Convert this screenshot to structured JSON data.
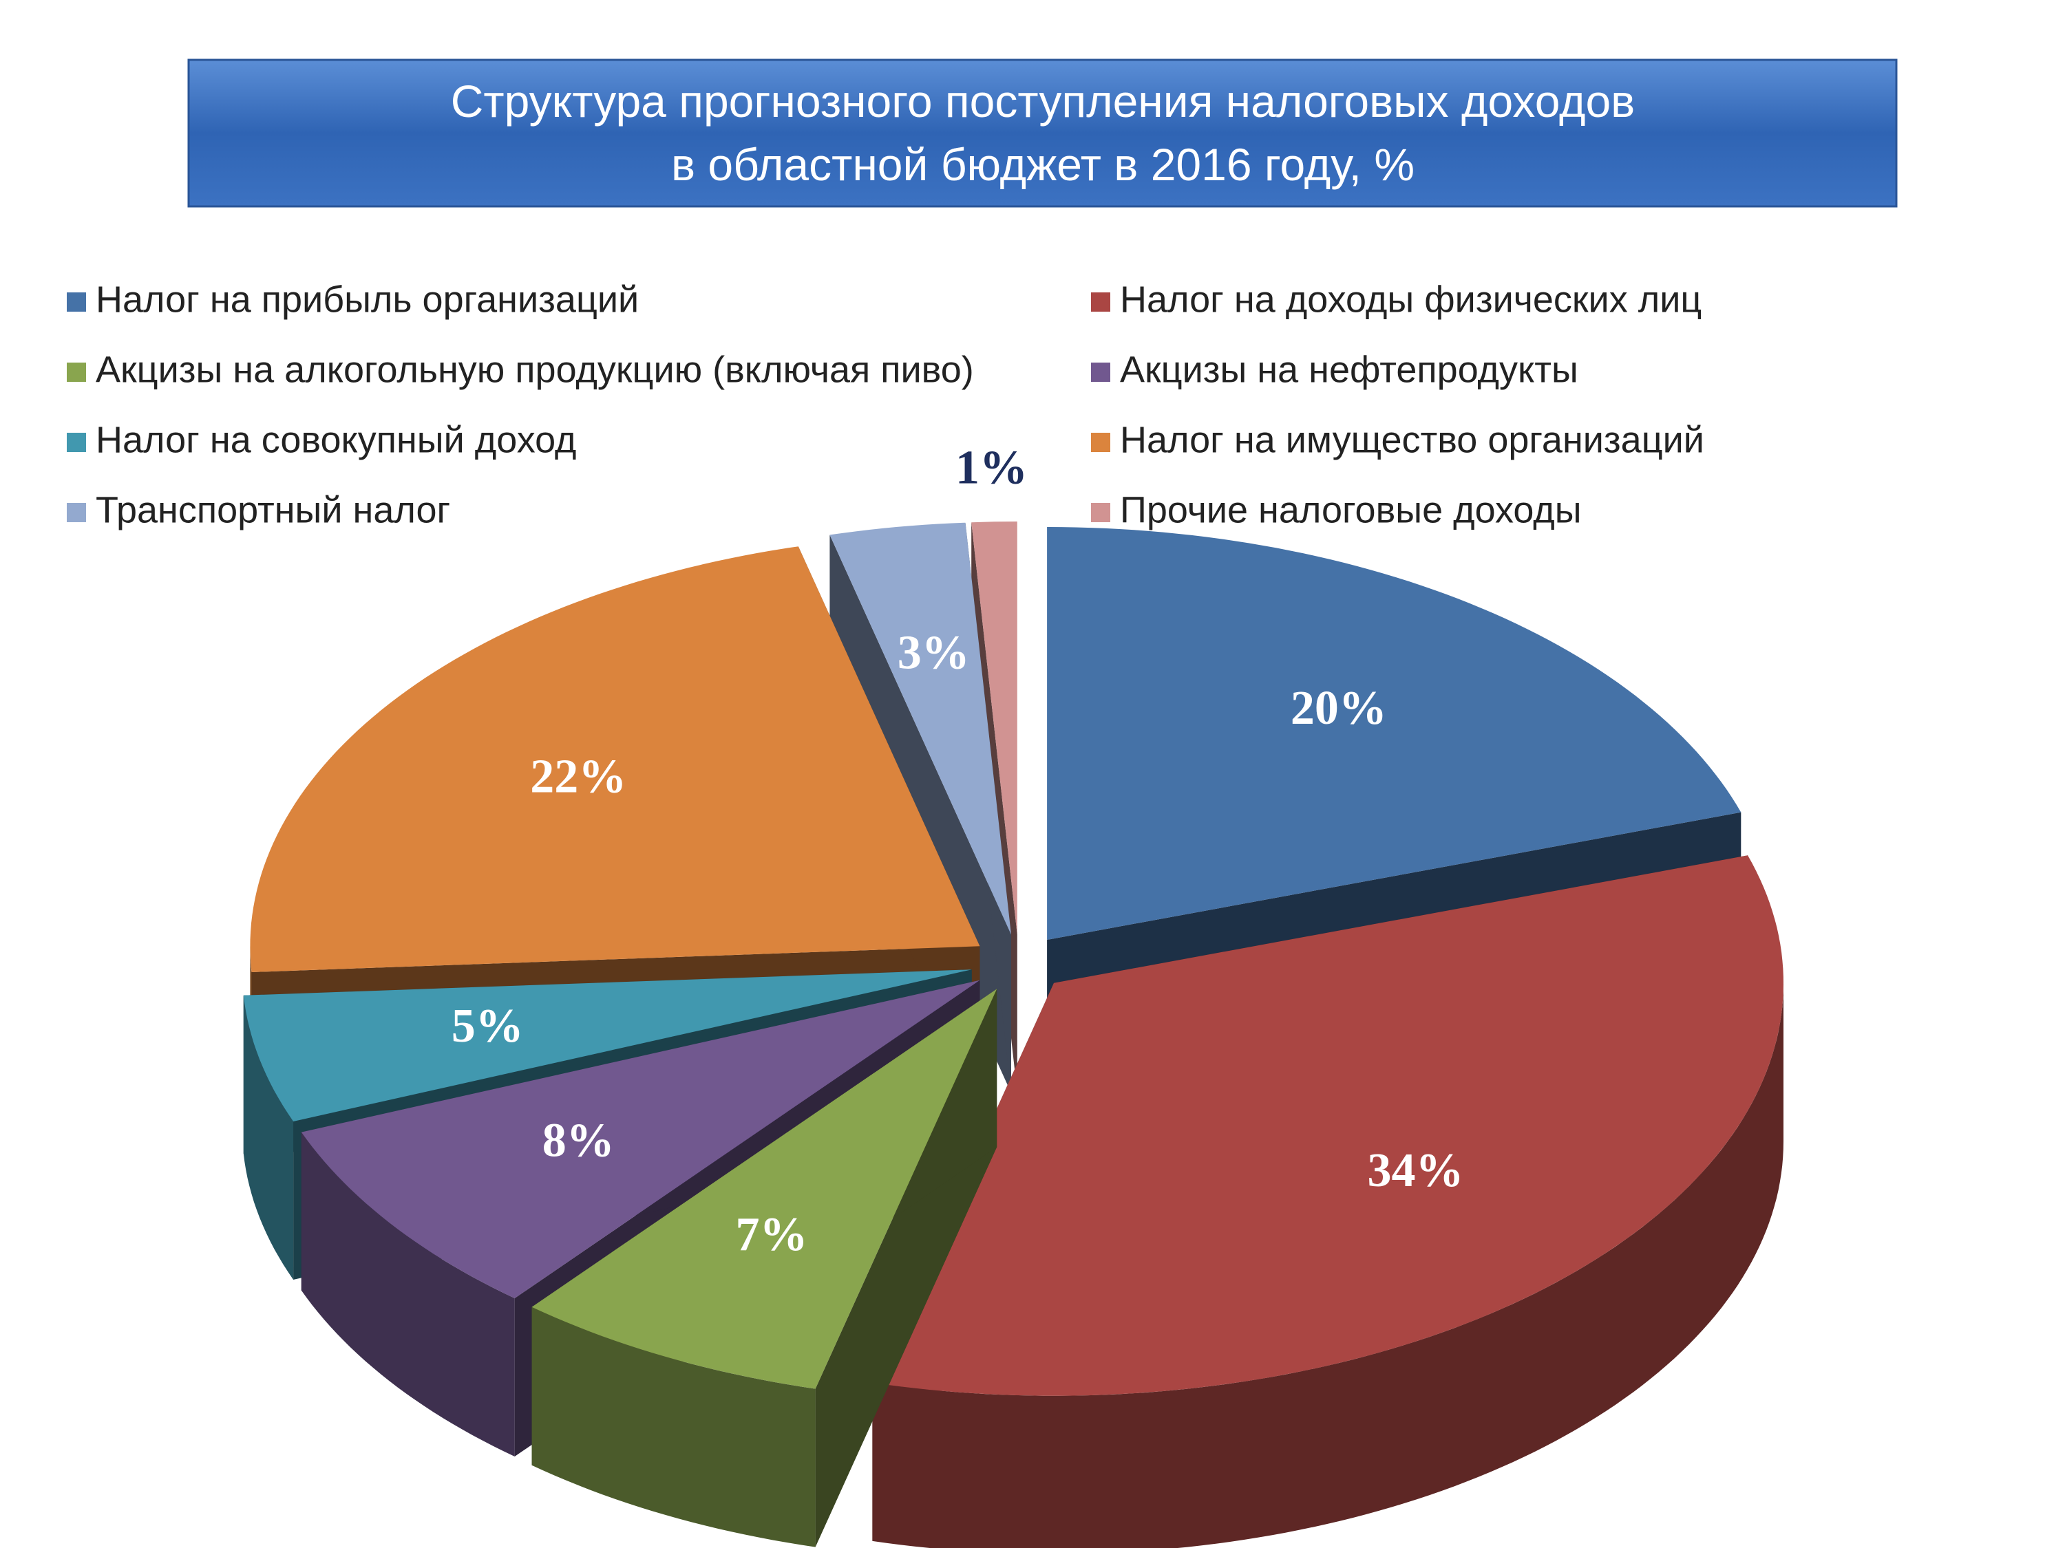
{
  "chart_data": {
    "type": "pie3d",
    "title": [
      "Структура прогнозного поступления налоговых доходов",
      "в областной бюджет в 2016 году, %"
    ],
    "categories": [
      "Налог на прибыль организаций",
      "Налог на доходы физических лиц",
      "Акцизы на алкогольную продукцию (включая пиво)",
      "Акцизы на нефтепродукты",
      "Налог на совокупный доход",
      "Налог на имущество организаций",
      "Транспортный налог",
      "Прочие налоговые доходы"
    ],
    "values": [
      20,
      34,
      7,
      8,
      5,
      22,
      3,
      1
    ],
    "value_labels": [
      "20%",
      "34%",
      "7%",
      "8%",
      "5%",
      "22%",
      "3%",
      "1%"
    ],
    "colors": [
      "#4572a7",
      "#aa4643",
      "#89a54e",
      "#71588f",
      "#4198af",
      "#db843d",
      "#93a9cf",
      "#d19392"
    ],
    "legend": "top"
  }
}
